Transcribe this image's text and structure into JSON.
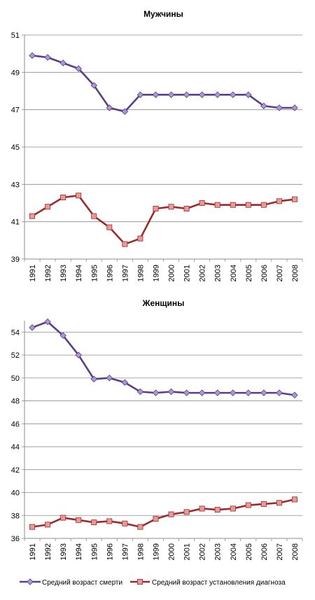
{
  "chart_data": [
    {
      "type": "line",
      "title": "Мужчины",
      "xlabel": "",
      "ylabel": "",
      "categories": [
        "1991",
        "1992",
        "1993",
        "1994",
        "1995",
        "1996",
        "1997",
        "1998",
        "1999",
        "2000",
        "2001",
        "2002",
        "2003",
        "2004",
        "2005",
        "2006",
        "2007",
        "2008"
      ],
      "ylim": [
        39,
        51
      ],
      "yticks": [
        "39",
        "41",
        "43",
        "45",
        "47",
        "49",
        "51"
      ],
      "grid": true,
      "series": [
        {
          "name": "Средний возраст смерти",
          "color": "#5b3e8a",
          "marker": "diamond",
          "values": [
            49.9,
            49.8,
            49.5,
            49.2,
            48.3,
            47.1,
            46.9,
            47.8,
            47.8,
            47.8,
            47.8,
            47.8,
            47.8,
            47.8,
            47.8,
            47.2,
            47.1,
            47.1
          ]
        },
        {
          "name": "Средний возраст установления диагноза",
          "color": "#9c2b2b",
          "marker": "square",
          "values": [
            41.3,
            41.8,
            42.3,
            42.4,
            41.3,
            40.7,
            39.8,
            40.1,
            41.7,
            41.8,
            41.7,
            42.0,
            41.9,
            41.9,
            41.9,
            41.9,
            42.1,
            42.2
          ]
        }
      ]
    },
    {
      "type": "line",
      "title": "Женщины",
      "xlabel": "",
      "ylabel": "",
      "categories": [
        "1991",
        "1992",
        "1993",
        "1994",
        "1995",
        "1996",
        "1997",
        "1998",
        "1999",
        "2000",
        "2001",
        "2002",
        "2003",
        "2004",
        "2005",
        "2006",
        "2007",
        "2008"
      ],
      "ylim": [
        36,
        55
      ],
      "yticks": [
        "36",
        "38",
        "40",
        "42",
        "44",
        "46",
        "48",
        "50",
        "52",
        "54"
      ],
      "grid": true,
      "legend_position": "bottom",
      "series": [
        {
          "name": "Средний возраст смерти",
          "color": "#5b3e8a",
          "marker": "diamond",
          "values": [
            54.4,
            54.9,
            53.7,
            52.0,
            49.9,
            50.0,
            49.6,
            48.8,
            48.7,
            48.8,
            48.7,
            48.7,
            48.7,
            48.7,
            48.7,
            48.7,
            48.7,
            48.5
          ]
        },
        {
          "name": "Средний возраст установления диагноза",
          "color": "#9c2b2b",
          "marker": "square",
          "values": [
            37.0,
            37.2,
            37.8,
            37.6,
            37.4,
            37.5,
            37.3,
            37.0,
            37.7,
            38.1,
            38.3,
            38.6,
            38.5,
            38.6,
            38.9,
            39.0,
            39.1,
            39.4
          ]
        }
      ]
    }
  ]
}
